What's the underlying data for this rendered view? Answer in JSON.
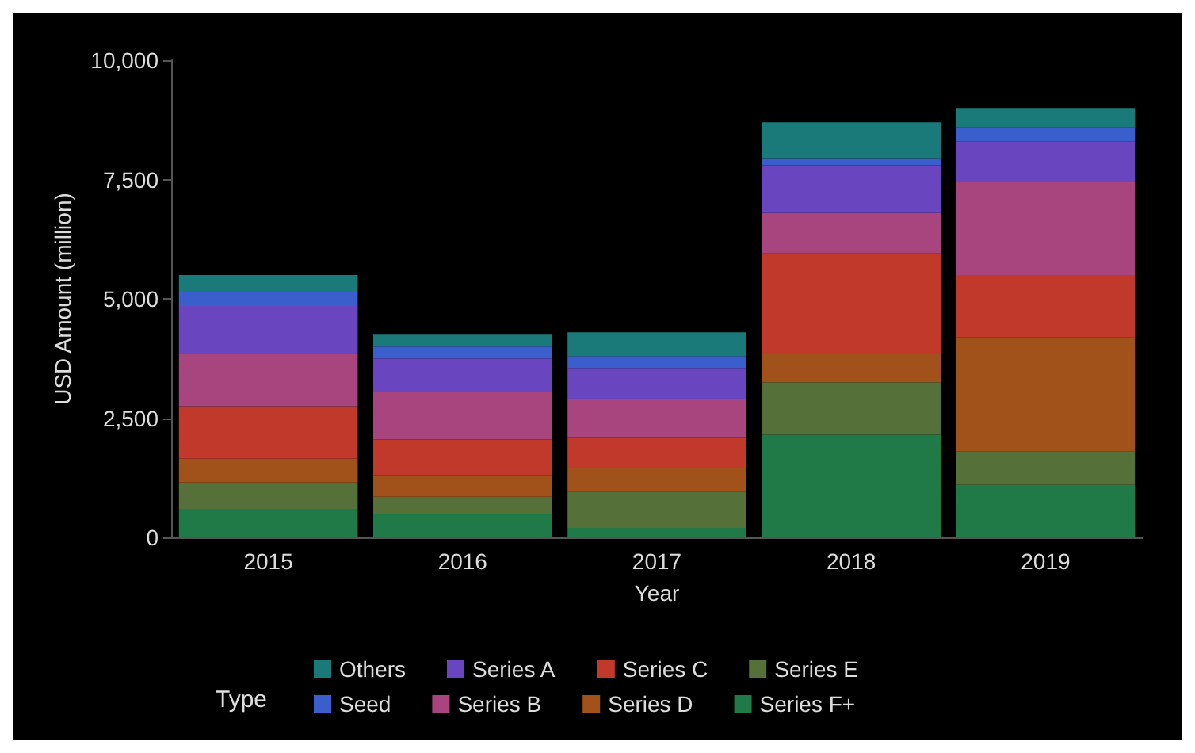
{
  "chart_data": {
    "type": "bar",
    "stacked": true,
    "xlabel": "Year",
    "ylabel": "USD Amount (million)",
    "legend_title": "Type",
    "legend": "bottom",
    "grid": false,
    "categories": [
      "2015",
      "2016",
      "2017",
      "2018",
      "2019"
    ],
    "ylim": [
      0,
      10000
    ],
    "yticks": [
      {
        "value": 0,
        "label": "0"
      },
      {
        "value": 2500,
        "label": "2,500"
      },
      {
        "value": 5000,
        "label": "5,000"
      },
      {
        "value": 7500,
        "label": "7,500"
      },
      {
        "value": 10000,
        "label": "10,000"
      }
    ],
    "series": [
      {
        "name": "Series F+",
        "color": "#1f7a47",
        "values": [
          600,
          500,
          200,
          2150,
          1100
        ]
      },
      {
        "name": "Series E",
        "color": "#56703a",
        "values": [
          550,
          350,
          750,
          1100,
          700
        ]
      },
      {
        "name": "Series D",
        "color": "#a0521a",
        "values": [
          500,
          450,
          500,
          600,
          2400
        ]
      },
      {
        "name": "Series C",
        "color": "#c0392b",
        "values": [
          1100,
          750,
          650,
          2100,
          1300
        ]
      },
      {
        "name": "Series B",
        "color": "#a8457f",
        "values": [
          1100,
          1000,
          800,
          850,
          1950
        ]
      },
      {
        "name": "Series A",
        "color": "#6a45c0",
        "values": [
          1000,
          700,
          650,
          1000,
          850
        ]
      },
      {
        "name": "Seed",
        "color": "#3a5fcd",
        "values": [
          300,
          250,
          250,
          150,
          300
        ]
      },
      {
        "name": "Others",
        "color": "#1a7a7a",
        "values": [
          350,
          250,
          500,
          750,
          400
        ]
      }
    ]
  }
}
